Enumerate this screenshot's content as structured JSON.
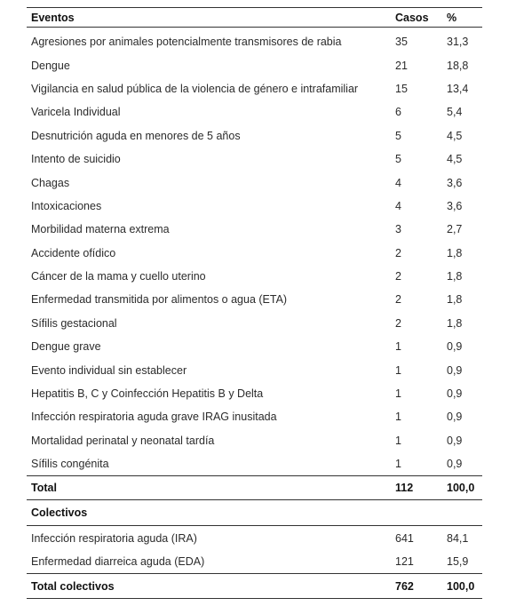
{
  "table": {
    "headers": {
      "eventos": "Eventos",
      "casos": "Casos",
      "pct": "%"
    },
    "rows": [
      {
        "evento": "Agresiones por animales potencialmente transmisores de rabia",
        "casos": "35",
        "pct": "31,3"
      },
      {
        "evento": "Dengue",
        "casos": "21",
        "pct": "18,8"
      },
      {
        "evento": "Vigilancia en salud pública de la violencia de género e intrafamiliar",
        "casos": "15",
        "pct": "13,4"
      },
      {
        "evento": "Varicela Individual",
        "casos": "6",
        "pct": "5,4"
      },
      {
        "evento": "Desnutrición aguda en menores de 5 años",
        "casos": "5",
        "pct": "4,5"
      },
      {
        "evento": "Intento de suicidio",
        "casos": "5",
        "pct": "4,5"
      },
      {
        "evento": "Chagas",
        "casos": "4",
        "pct": "3,6"
      },
      {
        "evento": "Intoxicaciones",
        "casos": "4",
        "pct": "3,6"
      },
      {
        "evento": "Morbilidad materna extrema",
        "casos": "3",
        "pct": "2,7"
      },
      {
        "evento": "Accidente ofídico",
        "casos": "2",
        "pct": "1,8"
      },
      {
        "evento": "Cáncer de la mama y cuello uterino",
        "casos": "2",
        "pct": "1,8"
      },
      {
        "evento": "Enfermedad transmitida por alimentos o agua (ETA)",
        "casos": "2",
        "pct": "1,8"
      },
      {
        "evento": "Sífilis gestacional",
        "casos": "2",
        "pct": "1,8"
      },
      {
        "evento": "Dengue grave",
        "casos": "1",
        "pct": "0,9"
      },
      {
        "evento": "Evento individual sin establecer",
        "casos": "1",
        "pct": "0,9"
      },
      {
        "evento": "Hepatitis B, C y Coinfección Hepatitis B y Delta",
        "casos": "1",
        "pct": "0,9"
      },
      {
        "evento": "Infección respiratoria aguda grave IRAG inusitada",
        "casos": "1",
        "pct": "0,9"
      },
      {
        "evento": "Mortalidad perinatal y neonatal tardía",
        "casos": "1",
        "pct": "0,9"
      },
      {
        "evento": "Sífilis congénita",
        "casos": "1",
        "pct": "0,9"
      }
    ],
    "total": {
      "label": "Total",
      "casos": "112",
      "pct": "100,0"
    },
    "colectivos_heading": "Colectivos",
    "colectivos_rows": [
      {
        "evento": "Infección respiratoria aguda (IRA)",
        "casos": "641",
        "pct": "84,1"
      },
      {
        "evento": "Enfermedad diarreica aguda (EDA)",
        "casos": "121",
        "pct": "15,9"
      }
    ],
    "total_colectivos": {
      "label": "Total colectivos",
      "casos": "762",
      "pct": "100,0"
    }
  }
}
